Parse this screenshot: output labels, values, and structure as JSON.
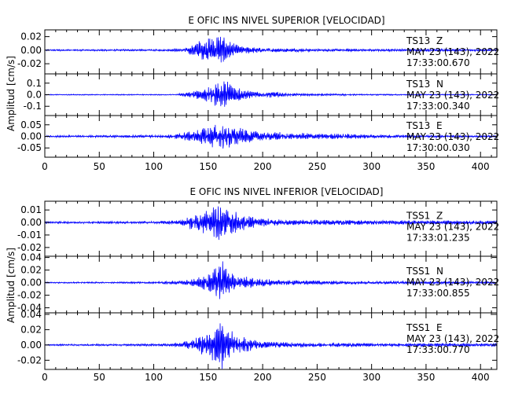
{
  "chart_data": {
    "type": "line",
    "trace_color": "#0000ff",
    "frame_color": "#000000",
    "xlim": [
      0,
      415
    ],
    "x_ticks": [
      "0",
      "50",
      "100",
      "150",
      "200",
      "250",
      "300",
      "350",
      "400"
    ],
    "groups": [
      {
        "title": "E OFIC INS NIVEL SUPERIOR [VELOCIDAD]",
        "ylabel": "Amplitud [cm/s]",
        "channels": [
          {
            "station": "TS13",
            "component": "Z",
            "date": "MAY 23 (143), 2022",
            "start_time": "17:33:00.670",
            "ylim": [
              -0.035,
              0.03
            ],
            "y_ticks": [
              "0.02",
              "0.00",
              "-0.02"
            ],
            "envelope": [
              [
                0,
                0.0012
              ],
              [
                100,
                0.0015
              ],
              [
                125,
                0.002
              ],
              [
                132,
                0.006
              ],
              [
                140,
                0.014
              ],
              [
                148,
                0.018
              ],
              [
                155,
                0.02
              ],
              [
                160,
                0.024
              ],
              [
                165,
                0.02
              ],
              [
                172,
                0.011
              ],
              [
                180,
                0.006
              ],
              [
                200,
                0.0035
              ],
              [
                230,
                0.0025
              ],
              [
                260,
                0.002
              ],
              [
                330,
                0.0018
              ],
              [
                380,
                0.002
              ],
              [
                415,
                0.0017
              ]
            ]
          },
          {
            "station": "TS13",
            "component": "N",
            "date": "MAY 23 (143), 2022",
            "start_time": "17:33:00.340",
            "ylim": [
              -0.18,
              0.18
            ],
            "y_ticks": [
              "0.1",
              "0.0",
              "-0.1"
            ],
            "envelope": [
              [
                0,
                0.004
              ],
              [
                120,
                0.005
              ],
              [
                130,
                0.02
              ],
              [
                140,
                0.045
              ],
              [
                150,
                0.07
              ],
              [
                160,
                0.12
              ],
              [
                166,
                0.14
              ],
              [
                172,
                0.1
              ],
              [
                180,
                0.055
              ],
              [
                190,
                0.03
              ],
              [
                200,
                0.022
              ],
              [
                210,
                0.03
              ],
              [
                220,
                0.015
              ],
              [
                235,
                0.01
              ],
              [
                300,
                0.006
              ],
              [
                415,
                0.004
              ]
            ]
          },
          {
            "station": "TS13",
            "component": "E",
            "date": "MAY 23 (143), 2022",
            "start_time": "17:30:00.030",
            "ylim": [
              -0.09,
              0.09
            ],
            "y_ticks": [
              "0.05",
              "0.00",
              "-0.05"
            ],
            "envelope": [
              [
                0,
                0.004
              ],
              [
                110,
                0.006
              ],
              [
                125,
                0.015
              ],
              [
                140,
                0.03
              ],
              [
                150,
                0.045
              ],
              [
                160,
                0.06
              ],
              [
                166,
                0.065
              ],
              [
                172,
                0.05
              ],
              [
                182,
                0.035
              ],
              [
                195,
                0.022
              ],
              [
                205,
                0.016
              ],
              [
                215,
                0.02
              ],
              [
                225,
                0.012
              ],
              [
                240,
                0.016
              ],
              [
                255,
                0.011
              ],
              [
                275,
                0.013
              ],
              [
                300,
                0.008
              ],
              [
                350,
                0.005
              ],
              [
                415,
                0.004
              ]
            ]
          }
        ]
      },
      {
        "title": "E OFIC INS NIVEL INFERIOR [VELOCIDAD]",
        "ylabel": "Amplitud [cm/s]",
        "channels": [
          {
            "station": "TSS1",
            "component": "Z",
            "date": "MAY 23 (143), 2022",
            "start_time": "17:33:01.235",
            "ylim": [
              -0.027,
              0.017
            ],
            "y_ticks": [
              "0.01",
              "0.00",
              "-0.01",
              "-0.02"
            ],
            "envelope": [
              [
                0,
                0.0008
              ],
              [
                100,
                0.001
              ],
              [
                125,
                0.002
              ],
              [
                135,
                0.006
              ],
              [
                145,
                0.01
              ],
              [
                155,
                0.013
              ],
              [
                162,
                0.016
              ],
              [
                170,
                0.011
              ],
              [
                180,
                0.008
              ],
              [
                195,
                0.0035
              ],
              [
                220,
                0.0025
              ],
              [
                300,
                0.0018
              ],
              [
                415,
                0.0015
              ]
            ]
          },
          {
            "station": "TSS1",
            "component": "N",
            "date": "MAY 23 (143), 2022",
            "start_time": "17:33:00.855",
            "ylim": [
              -0.048,
              0.042
            ],
            "y_ticks": [
              "0.04",
              "0.02",
              "0.00",
              "-0.02",
              "-0.04"
            ],
            "envelope": [
              [
                0,
                0.001
              ],
              [
                100,
                0.0015
              ],
              [
                125,
                0.003
              ],
              [
                140,
                0.008
              ],
              [
                150,
                0.016
              ],
              [
                158,
                0.025
              ],
              [
                163,
                0.035
              ],
              [
                168,
                0.02
              ],
              [
                178,
                0.012
              ],
              [
                195,
                0.007
              ],
              [
                220,
                0.004
              ],
              [
                300,
                0.0025
              ],
              [
                415,
                0.002
              ]
            ]
          },
          {
            "station": "TSS1",
            "component": "E",
            "date": "MAY 23 (143), 2022",
            "start_time": "17:33:00.770",
            "ylim": [
              -0.032,
              0.042
            ],
            "y_ticks": [
              "0.04",
              "0.02",
              "0.00",
              "-0.02"
            ],
            "envelope": [
              [
                0,
                0.001
              ],
              [
                100,
                0.0015
              ],
              [
                125,
                0.003
              ],
              [
                140,
                0.01
              ],
              [
                150,
                0.018
              ],
              [
                158,
                0.028
              ],
              [
                163,
                0.036
              ],
              [
                168,
                0.022
              ],
              [
                178,
                0.012
              ],
              [
                195,
                0.006
              ],
              [
                230,
                0.003
              ],
              [
                300,
                0.0025
              ],
              [
                415,
                0.002
              ]
            ]
          }
        ]
      }
    ]
  }
}
